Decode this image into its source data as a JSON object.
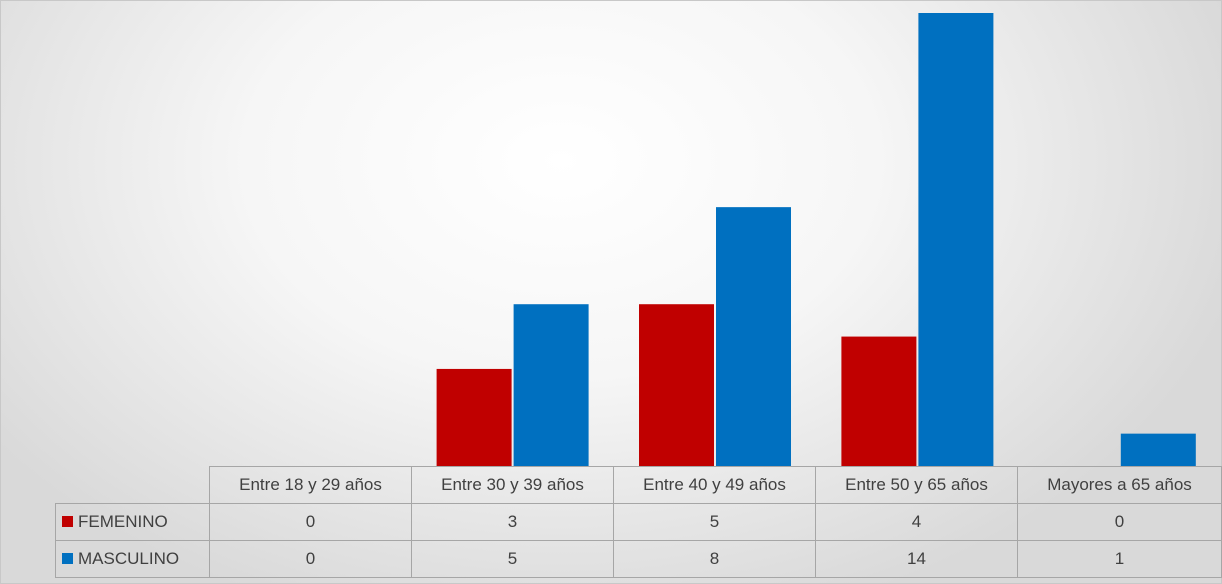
{
  "chart_data": {
    "type": "bar",
    "categories": [
      "Entre 18 y 29 años",
      "Entre 30 y 39 años",
      "Entre 40 y 49 años",
      "Entre 50 y 65 años",
      "Mayores a 65 años"
    ],
    "series": [
      {
        "name": "FEMENINO",
        "values": [
          0,
          3,
          5,
          4,
          0
        ],
        "color": "#C00000"
      },
      {
        "name": "MASCULINO",
        "values": [
          0,
          5,
          8,
          14,
          1
        ],
        "color": "#0070C0"
      }
    ],
    "ylim": [
      0,
      14
    ],
    "grid": false,
    "legend": "data-table",
    "title": "",
    "xlabel": "",
    "ylabel": ""
  }
}
